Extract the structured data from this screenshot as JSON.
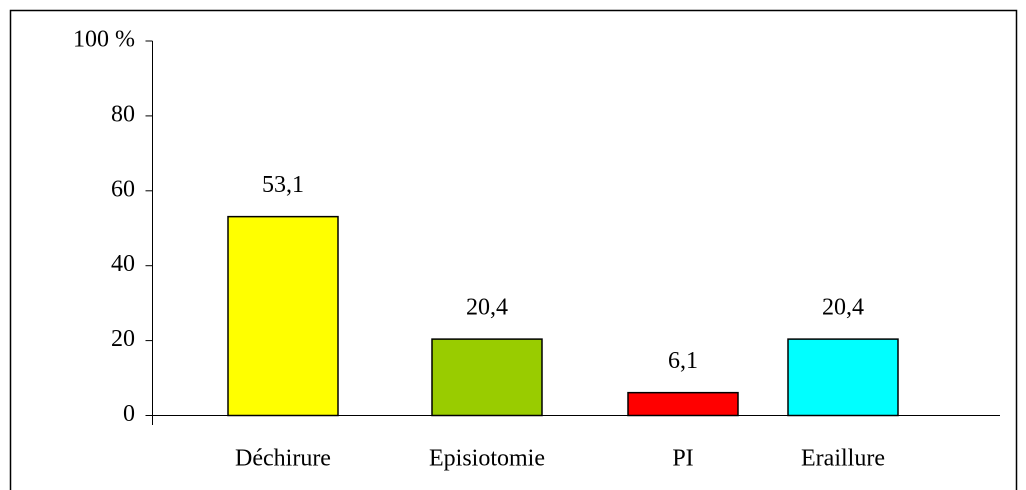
{
  "chart_data": {
    "type": "bar",
    "categories": [
      "Déchirure",
      "Episiotomie",
      "PI",
      "Eraillure"
    ],
    "values": [
      53.1,
      20.4,
      6.1,
      20.4
    ],
    "value_labels": [
      "53,1",
      "20,4",
      "6,1",
      "20,4"
    ],
    "colors": [
      "#ffff00",
      "#99cc00",
      "#ff0000",
      "#00ffff"
    ],
    "ylim": [
      0,
      100
    ],
    "yticks": [
      0,
      20,
      40,
      60,
      80,
      {
        "value": 100,
        "label": "100 %"
      }
    ],
    "grid": false
  }
}
